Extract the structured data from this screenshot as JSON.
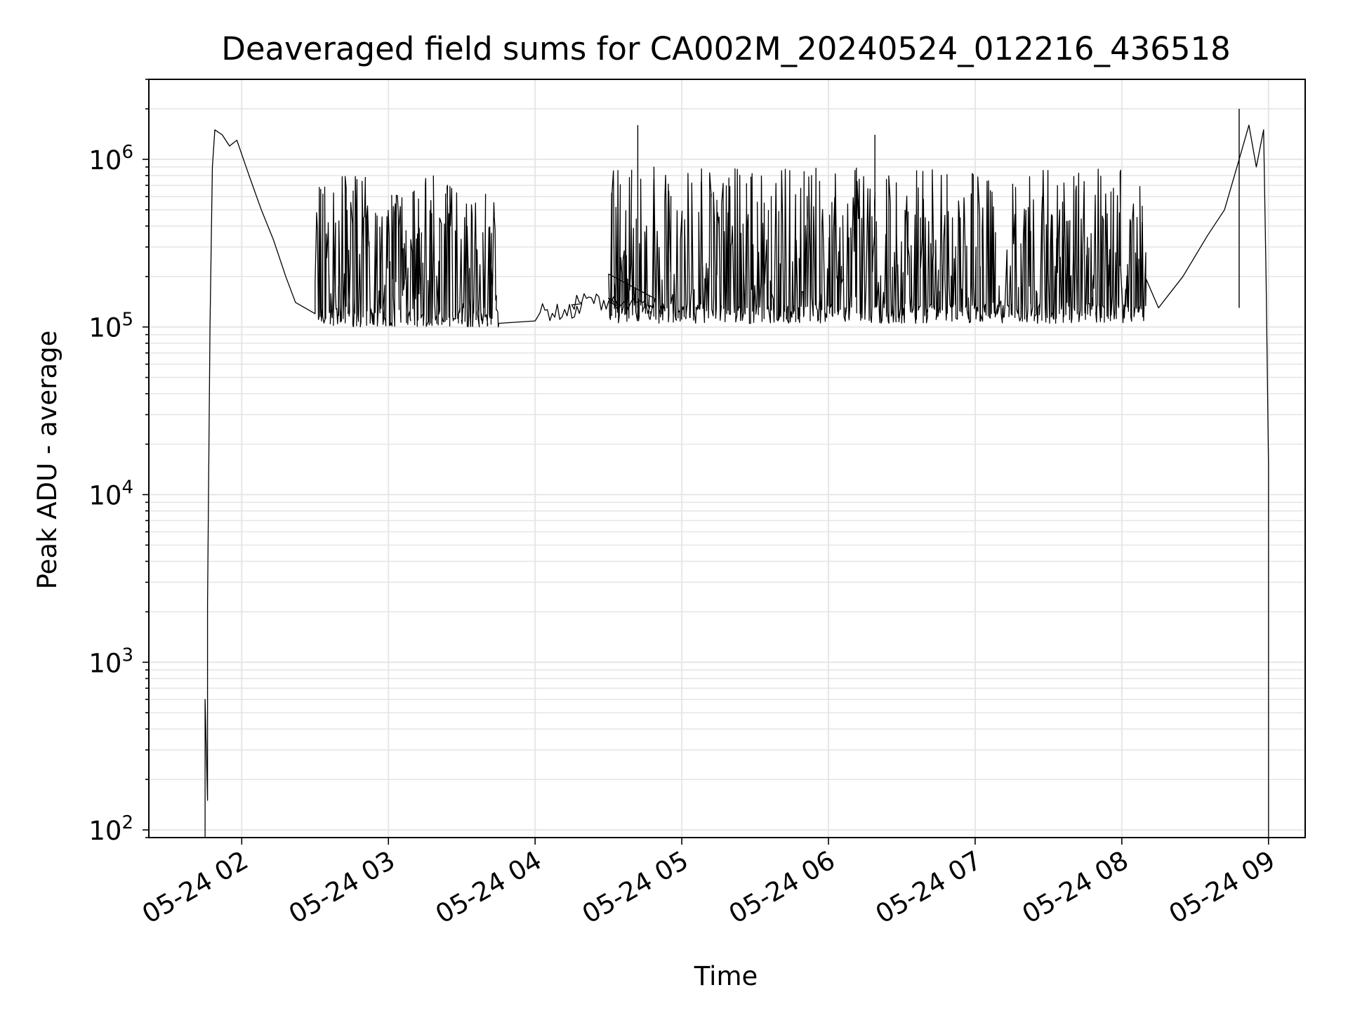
{
  "chart_data": {
    "type": "line",
    "title": "Deaveraged field sums for CA002M_20240524_012216_436518",
    "xlabel": "Time",
    "ylabel": "Peak ADU - average",
    "yscale": "log",
    "grid": true,
    "x_axis": {
      "min": "2024-05-24 01:22",
      "max": "2024-05-24 09:15",
      "ticks": [
        "2024-05-24 02:00",
        "2024-05-24 03:00",
        "2024-05-24 04:00",
        "2024-05-24 05:00",
        "2024-05-24 06:00",
        "2024-05-24 07:00",
        "2024-05-24 08:00",
        "2024-05-24 09:00"
      ],
      "tick_labels": [
        "05-24 02",
        "05-24 03",
        "05-24 04",
        "05-24 05",
        "05-24 06",
        "05-24 07",
        "05-24 08",
        "05-24 09"
      ]
    },
    "y_axis": {
      "ylim": [
        90,
        3000000
      ],
      "ticks": [
        100,
        1000,
        10000,
        100000,
        1000000
      ],
      "tick_labels": [
        {
          "base": "10",
          "exp": "2"
        },
        {
          "base": "10",
          "exp": "3"
        },
        {
          "base": "10",
          "exp": "4"
        },
        {
          "base": "10",
          "exp": "5"
        },
        {
          "base": "10",
          "exp": "6"
        }
      ]
    },
    "series": [
      {
        "color": "#000000",
        "note": "noisy time series; envelope points (time, value) with low/high spike ranges",
        "points": [
          [
            "2024-05-24 01:45",
            90
          ],
          [
            "2024-05-24 01:45",
            600
          ],
          [
            "2024-05-24 01:46",
            150
          ],
          [
            "2024-05-24 01:46",
            2200
          ],
          [
            "2024-05-24 01:47",
            100000
          ],
          [
            "2024-05-24 01:48",
            900000
          ],
          [
            "2024-05-24 01:49",
            1500000
          ],
          [
            "2024-05-24 01:52",
            1400000
          ],
          [
            "2024-05-24 01:55",
            1200000
          ],
          [
            "2024-05-24 01:58",
            1300000
          ],
          [
            "2024-05-24 02:03",
            800000
          ],
          [
            "2024-05-24 02:08",
            500000
          ],
          [
            "2024-05-24 02:13",
            330000
          ],
          [
            "2024-05-24 02:18",
            200000
          ],
          [
            "2024-05-24 02:22",
            140000
          ],
          [
            "2024-05-24 02:30",
            120000
          ]
        ],
        "noisy_band": {
          "low": 100000,
          "high": 800000,
          "start": "2024-05-24 02:30",
          "end": "2024-05-24 03:45"
        },
        "calm_segment": [
          [
            "2024-05-24 04:00",
            120000
          ],
          [
            "2024-05-24 04:15",
            140000
          ],
          [
            "2024-05-24 04:30",
            130000
          ]
        ],
        "later_band": {
          "low": 105000,
          "high": 900000,
          "start": "2024-05-24 04:30",
          "end": "2024-05-24 08:10"
        },
        "end_points": [
          [
            "2024-05-24 08:15",
            130000
          ],
          [
            "2024-05-24 08:25",
            200000
          ],
          [
            "2024-05-24 08:35",
            350000
          ],
          [
            "2024-05-24 08:42",
            500000
          ],
          [
            "2024-05-24 08:48",
            1000000
          ],
          [
            "2024-05-24 08:52",
            1600000
          ],
          [
            "2024-05-24 08:55",
            900000
          ],
          [
            "2024-05-24 08:58",
            1500000
          ],
          [
            "2024-05-24 08:59",
            200000
          ],
          [
            "2024-05-24 09:00",
            15000
          ],
          [
            "2024-05-24 09:00",
            90
          ]
        ],
        "spikes": [
          [
            "2024-05-24 04:42",
            1600000
          ],
          [
            "2024-05-24 06:19",
            1400000
          ],
          [
            "2024-05-24 08:48",
            2000000
          ]
        ]
      }
    ]
  }
}
